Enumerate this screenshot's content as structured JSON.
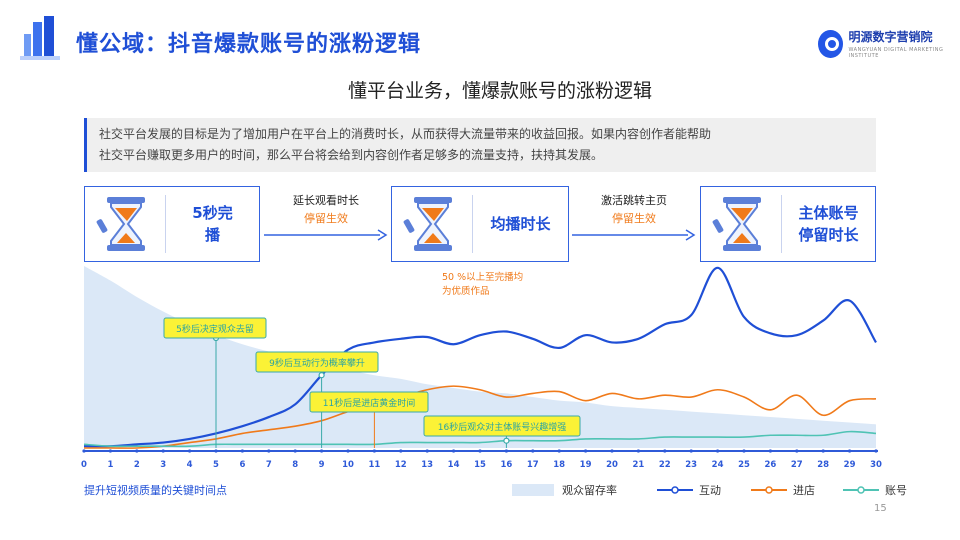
{
  "header": {
    "title": "懂公域：抖音爆款账号的涨粉逻辑",
    "brand_name": "明源数字营销院",
    "brand_sub": "WANGYUAN DIGITAL MARKETING INSTITUTE"
  },
  "subtitle": "懂平台业务，懂爆款账号的涨粉逻辑",
  "description": {
    "line1": "社交平台发展的目标是为了增加用户在平台上的消费时长，从而获得大流量带来的收益回报。如果内容创作者能帮助",
    "line2": "社交平台赚取更多用户的时间，那么平台将会给到内容创作者足够多的流量支持，扶持其发展。"
  },
  "steps": [
    {
      "line1": "5秒完",
      "line2": "播"
    },
    {
      "line1": "均播时长",
      "line2": ""
    },
    {
      "line1": "主体账号",
      "line2": "停留时长"
    }
  ],
  "arrows": [
    {
      "line1": "延长观看时长",
      "line2": "停留生效"
    },
    {
      "line1": "激活跳转主页",
      "line2": "停留生效"
    }
  ],
  "colors": {
    "accent": "#1f4fd6",
    "orange": "#f07a1a",
    "teal": "#4fc3b4",
    "area": "#dbe8f7",
    "callout": "#fbf236"
  },
  "chart_data": {
    "type": "line",
    "title": "",
    "xlabel": "",
    "ylabel": "",
    "x": [
      0,
      1,
      2,
      3,
      4,
      5,
      6,
      7,
      8,
      9,
      10,
      11,
      12,
      13,
      14,
      15,
      16,
      17,
      18,
      19,
      20,
      21,
      22,
      23,
      24,
      25,
      26,
      27,
      28,
      29,
      30
    ],
    "series": [
      {
        "name": "观众留存率",
        "kind": "area",
        "values": [
          100,
          92,
          83,
          75,
          68,
          62,
          57,
          53,
          49,
          46,
          43,
          40,
          38,
          35,
          33,
          31,
          30,
          28,
          26,
          25,
          23,
          22,
          21,
          20,
          19,
          18,
          17,
          16,
          15,
          14,
          13
        ]
      },
      {
        "name": "互动",
        "kind": "line",
        "values": [
          1,
          1,
          2,
          3,
          5,
          8,
          12,
          17,
          24,
          40,
          54,
          58,
          60,
          61,
          57,
          62,
          64,
          60,
          55,
          62,
          58,
          60,
          68,
          73,
          99,
          72,
          63,
          62,
          70,
          81,
          58
        ]
      },
      {
        "name": "进店",
        "kind": "line",
        "values": [
          0,
          0,
          0,
          1,
          3,
          5,
          8,
          10,
          12,
          15,
          20,
          24,
          28,
          32,
          34,
          32,
          28,
          30,
          31,
          26,
          30,
          27,
          29,
          28,
          32,
          28,
          21,
          29,
          18,
          26,
          27
        ]
      },
      {
        "name": "账号",
        "kind": "line",
        "values": [
          2,
          1,
          1,
          1,
          1,
          2,
          2,
          2,
          2,
          2,
          2,
          2,
          3,
          3,
          3,
          3,
          4,
          4,
          4,
          5,
          5,
          5,
          6,
          6,
          6,
          6,
          7,
          7,
          7,
          9,
          8
        ]
      }
    ],
    "ylim": [
      0,
      100
    ],
    "annotations": [
      {
        "text": "5秒后决定观众去留",
        "x": 5
      },
      {
        "text": "9秒后互动行为概率攀升",
        "x": 9
      },
      {
        "text": "11秒后是进店黄金时间",
        "x": 11
      },
      {
        "text": "16秒后观众对主体账号兴趣增强",
        "x": 16
      }
    ],
    "note": "50 %以上至完播均为优质作品",
    "footer_label": "提升短视频质量的关键时间点",
    "legend_placement": "bottom-right",
    "grid": false
  },
  "page_number": "15"
}
